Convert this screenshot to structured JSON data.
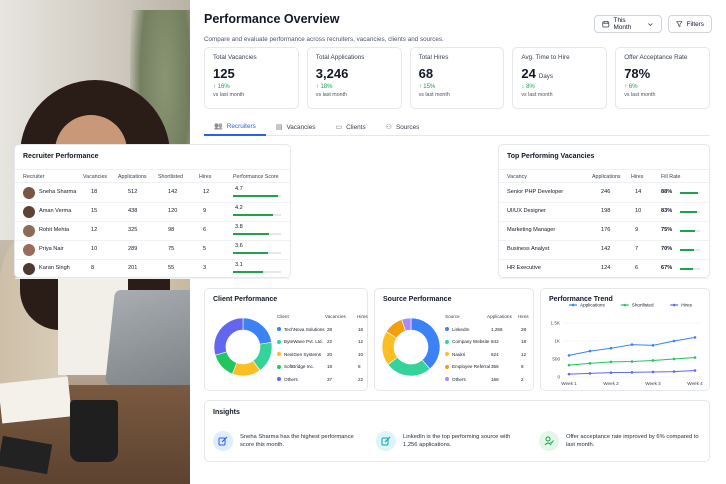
{
  "header": {
    "title": "Performance Overview",
    "subtitle": "Compare and evaluate performance across recruiters, vacancies, clients and sources.",
    "period_label": "This Month",
    "filters_label": "Filters"
  },
  "kpis": [
    {
      "label": "Total Vacancies",
      "value": "125",
      "unit": "",
      "change": "16%",
      "note": "vs last month",
      "direction": "up"
    },
    {
      "label": "Total Applications",
      "value": "3,246",
      "unit": "",
      "change": "18%",
      "note": "vs last month",
      "direction": "up"
    },
    {
      "label": "Total Hires",
      "value": "68",
      "unit": "",
      "change": "15%",
      "note": "vs last month",
      "direction": "up"
    },
    {
      "label": "Avg. Time to Hire",
      "value": "24",
      "unit": "Days",
      "change": "8%",
      "note": "vs last month",
      "direction": "down"
    },
    {
      "label": "Offer Acceptance Rate",
      "value": "78%",
      "unit": "",
      "change": "6%",
      "note": "vs last month",
      "direction": "up"
    }
  ],
  "tabs": [
    {
      "label": "Recruiters",
      "active": true
    },
    {
      "label": "Vacancies",
      "active": false
    },
    {
      "label": "Clients",
      "active": false
    },
    {
      "label": "Sources",
      "active": false
    }
  ],
  "recruiter_performance": {
    "title": "Recruiter Performance",
    "columns": [
      "Recruiter",
      "Vacancies",
      "Applications",
      "Shortlisted",
      "Hires",
      "Performance Score"
    ],
    "rows": [
      {
        "name": "Sneha Sharma",
        "vacancies": "18",
        "applications": "512",
        "shortlisted": "142",
        "hires": "12",
        "score": "4.7",
        "score_value": 4.7
      },
      {
        "name": "Aman Verma",
        "vacancies": "15",
        "applications": "438",
        "shortlisted": "120",
        "hires": "9",
        "score": "4.2",
        "score_value": 4.2
      },
      {
        "name": "Rohit Mehta",
        "vacancies": "12",
        "applications": "325",
        "shortlisted": "98",
        "hires": "6",
        "score": "3.8",
        "score_value": 3.8
      },
      {
        "name": "Priya Nair",
        "vacancies": "10",
        "applications": "289",
        "shortlisted": "75",
        "hires": "5",
        "score": "3.6",
        "score_value": 3.6
      },
      {
        "name": "Karan Singh",
        "vacancies": "8",
        "applications": "201",
        "shortlisted": "55",
        "hires": "3",
        "score": "3.1",
        "score_value": 3.1
      }
    ]
  },
  "top_vacancies": {
    "title": "Top Performing Vacancies",
    "columns": [
      "Vacancy",
      "Applications",
      "Hires",
      "Fill Rate"
    ],
    "rows": [
      {
        "vacancy": "Senior PHP Developer",
        "applications": "246",
        "hires": "14",
        "fill_rate": "88%",
        "fill_value": 88
      },
      {
        "vacancy": "UI/UX Designer",
        "applications": "198",
        "hires": "10",
        "fill_rate": "83%",
        "fill_value": 83
      },
      {
        "vacancy": "Marketing Manager",
        "applications": "176",
        "hires": "9",
        "fill_rate": "75%",
        "fill_value": 75
      },
      {
        "vacancy": "Business Analyst",
        "applications": "142",
        "hires": "7",
        "fill_rate": "70%",
        "fill_value": 70
      },
      {
        "vacancy": "HR Executive",
        "applications": "124",
        "hires": "6",
        "fill_rate": "67%",
        "fill_value": 67
      }
    ]
  },
  "client_performance": {
    "title": "Client Performance",
    "columns": [
      "Client",
      "Vacancies",
      "Hires"
    ],
    "rows": [
      {
        "name": "TechNova Solutions",
        "vacancies": "28",
        "hires": "16",
        "color": "#3b82f6"
      },
      {
        "name": "ByteWave Pvt. Ltd.",
        "vacancies": "22",
        "hires": "12",
        "color": "#34d399"
      },
      {
        "name": "NextGen Systems",
        "vacancies": "20",
        "hires": "10",
        "color": "#fbbf24"
      },
      {
        "name": "SoftBridge Inc.",
        "vacancies": "18",
        "hires": "8",
        "color": "#22c55e"
      },
      {
        "name": "Others",
        "vacancies": "37",
        "hires": "22",
        "color": "#6366f1"
      }
    ]
  },
  "source_performance": {
    "title": "Source Performance",
    "columns": [
      "Source",
      "Applications",
      "Hires"
    ],
    "rows": [
      {
        "name": "LinkedIn",
        "applications": "1,256",
        "hires": "28",
        "color": "#3b82f6"
      },
      {
        "name": "Company Website",
        "applications": "842",
        "hires": "18",
        "color": "#34d399"
      },
      {
        "name": "Naukri",
        "applications": "624",
        "hires": "12",
        "color": "#fbbf24"
      },
      {
        "name": "Employee Referral",
        "applications": "356",
        "hires": "8",
        "color": "#f59e0b"
      },
      {
        "name": "Others",
        "applications": "168",
        "hires": "2",
        "color": "#a78bfa"
      }
    ]
  },
  "chart_data": {
    "type": "line",
    "title": "Performance Trend",
    "categories": [
      "Week 1",
      "Week 2",
      "Week 3",
      "Week 4"
    ],
    "x": [
      "Week 1",
      "",
      "Week 2",
      "",
      "Week 3",
      "",
      "Week 4"
    ],
    "series": [
      {
        "name": "Applications",
        "color": "#3b82f6",
        "values": [
          600,
          720,
          800,
          900,
          880,
          1000,
          1100
        ]
      },
      {
        "name": "Shortlisted",
        "color": "#22c55e",
        "values": [
          330,
          380,
          420,
          430,
          460,
          500,
          540
        ]
      },
      {
        "name": "Hires",
        "color": "#6366f1",
        "values": [
          80,
          100,
          120,
          130,
          140,
          150,
          180
        ]
      }
    ],
    "y_ticks": [
      "0",
      "500",
      "1K",
      "1.5K"
    ],
    "ylim": [
      0,
      1500
    ],
    "legend": "top"
  },
  "insights": {
    "title": "Insights",
    "items": [
      {
        "text": "Sneha Sharma has the highest performance score this month.",
        "icon": "edit-icon",
        "color": "#2563eb",
        "bg": "#e0ecff"
      },
      {
        "text": "LinkedIn is the top performing source with 1,256 applications.",
        "icon": "edit-icon",
        "color": "#0ea5b7",
        "bg": "#dff4f6"
      },
      {
        "text": "Offer acceptance rate improved by 6% compared to last month.",
        "icon": "user-check-icon",
        "color": "#16a34a",
        "bg": "#e3f6e9"
      }
    ]
  }
}
